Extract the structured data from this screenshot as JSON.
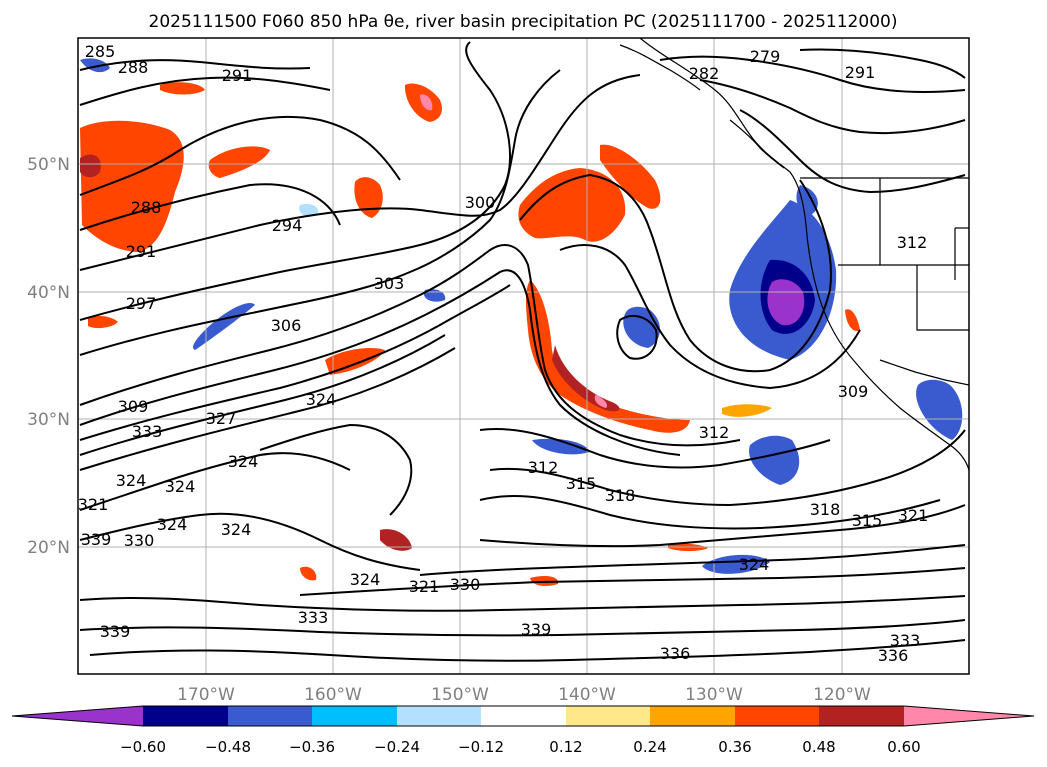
{
  "title": "2025111500 F060 850 hPa θe, river basin precipitation PC (2025111700 - 2025112000)",
  "lon_labels": [
    "170°W",
    "160°W",
    "150°W",
    "140°W",
    "130°W",
    "120°W"
  ],
  "lat_labels": [
    "50°N",
    "40°N",
    "30°N",
    "20°N"
  ],
  "contour_labels": [
    "285",
    "288",
    "291",
    "279",
    "282",
    "291",
    "288",
    "291",
    "294",
    "300",
    "303",
    "297",
    "306",
    "309",
    "333",
    "327",
    "324",
    "324",
    "321",
    "324",
    "324",
    "324",
    "324",
    "330",
    "312",
    "315",
    "318",
    "312",
    "309",
    "318",
    "315",
    "321",
    "324",
    "321",
    "330",
    "333",
    "339",
    "339",
    "336",
    "333",
    "336",
    "339",
    "324",
    "312"
  ],
  "colorbar": {
    "ticks": [
      "−0.60",
      "−0.48",
      "−0.36",
      "−0.24",
      "−0.12",
      "0.12",
      "0.24",
      "0.36",
      "0.48",
      "0.60"
    ],
    "colors": [
      "#9933cc",
      "#00008b",
      "#3a5bd0",
      "#00bfff",
      "#b3e0ff",
      "#ffffff",
      "#ffe88a",
      "#ffa500",
      "#ff4500",
      "#b22222",
      "#ff88aa"
    ]
  },
  "map": {
    "lon_range": [
      "180°W",
      "110°W"
    ],
    "lat_range": [
      "10°N",
      "60°N"
    ],
    "gridlines": true,
    "colors": {
      "contour": "#000000",
      "grid": "#b0b0b0",
      "axis_label": "#808080",
      "frame": "#000000"
    }
  }
}
